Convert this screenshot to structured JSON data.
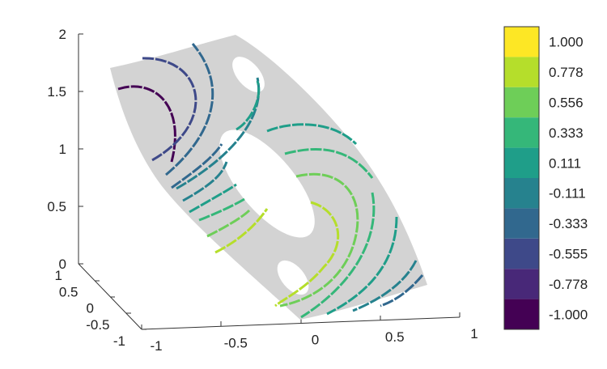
{
  "chart_data": {
    "type": "contour",
    "title": "",
    "z_axis": {
      "range": [
        0,
        2
      ],
      "ticks": [
        "0",
        "0.5",
        "1",
        "1.5",
        "2"
      ]
    },
    "x_axis": {
      "range": [
        -1,
        1
      ],
      "ticks": [
        "-1",
        "-0.5",
        "0",
        "0.5",
        "1"
      ]
    },
    "y_axis": {
      "range": [
        -1,
        1
      ],
      "ticks": [
        "-1",
        "-0.5",
        "0",
        "0.5",
        "1"
      ]
    },
    "surface_color": "#d3d3d3",
    "colorbar": {
      "levels": [
        {
          "label": "1.000",
          "value": 1.0,
          "color": "#fde725"
        },
        {
          "label": "0.778",
          "value": 0.778,
          "color": "#b5de2b"
        },
        {
          "label": "0.556",
          "value": 0.556,
          "color": "#6ece58"
        },
        {
          "label": "0.333",
          "value": 0.333,
          "color": "#35b779"
        },
        {
          "label": "0.111",
          "value": 0.111,
          "color": "#1f9e89"
        },
        {
          "label": "-0.111",
          "value": -0.111,
          "color": "#26828e"
        },
        {
          "label": "-0.333",
          "value": -0.333,
          "color": "#31688e"
        },
        {
          "label": "-0.555",
          "value": -0.555,
          "color": "#3e4989"
        },
        {
          "label": "-0.778",
          "value": -0.778,
          "color": "#482878"
        },
        {
          "label": "-1.000",
          "value": -1.0,
          "color": "#440154"
        }
      ]
    },
    "grid": false
  }
}
